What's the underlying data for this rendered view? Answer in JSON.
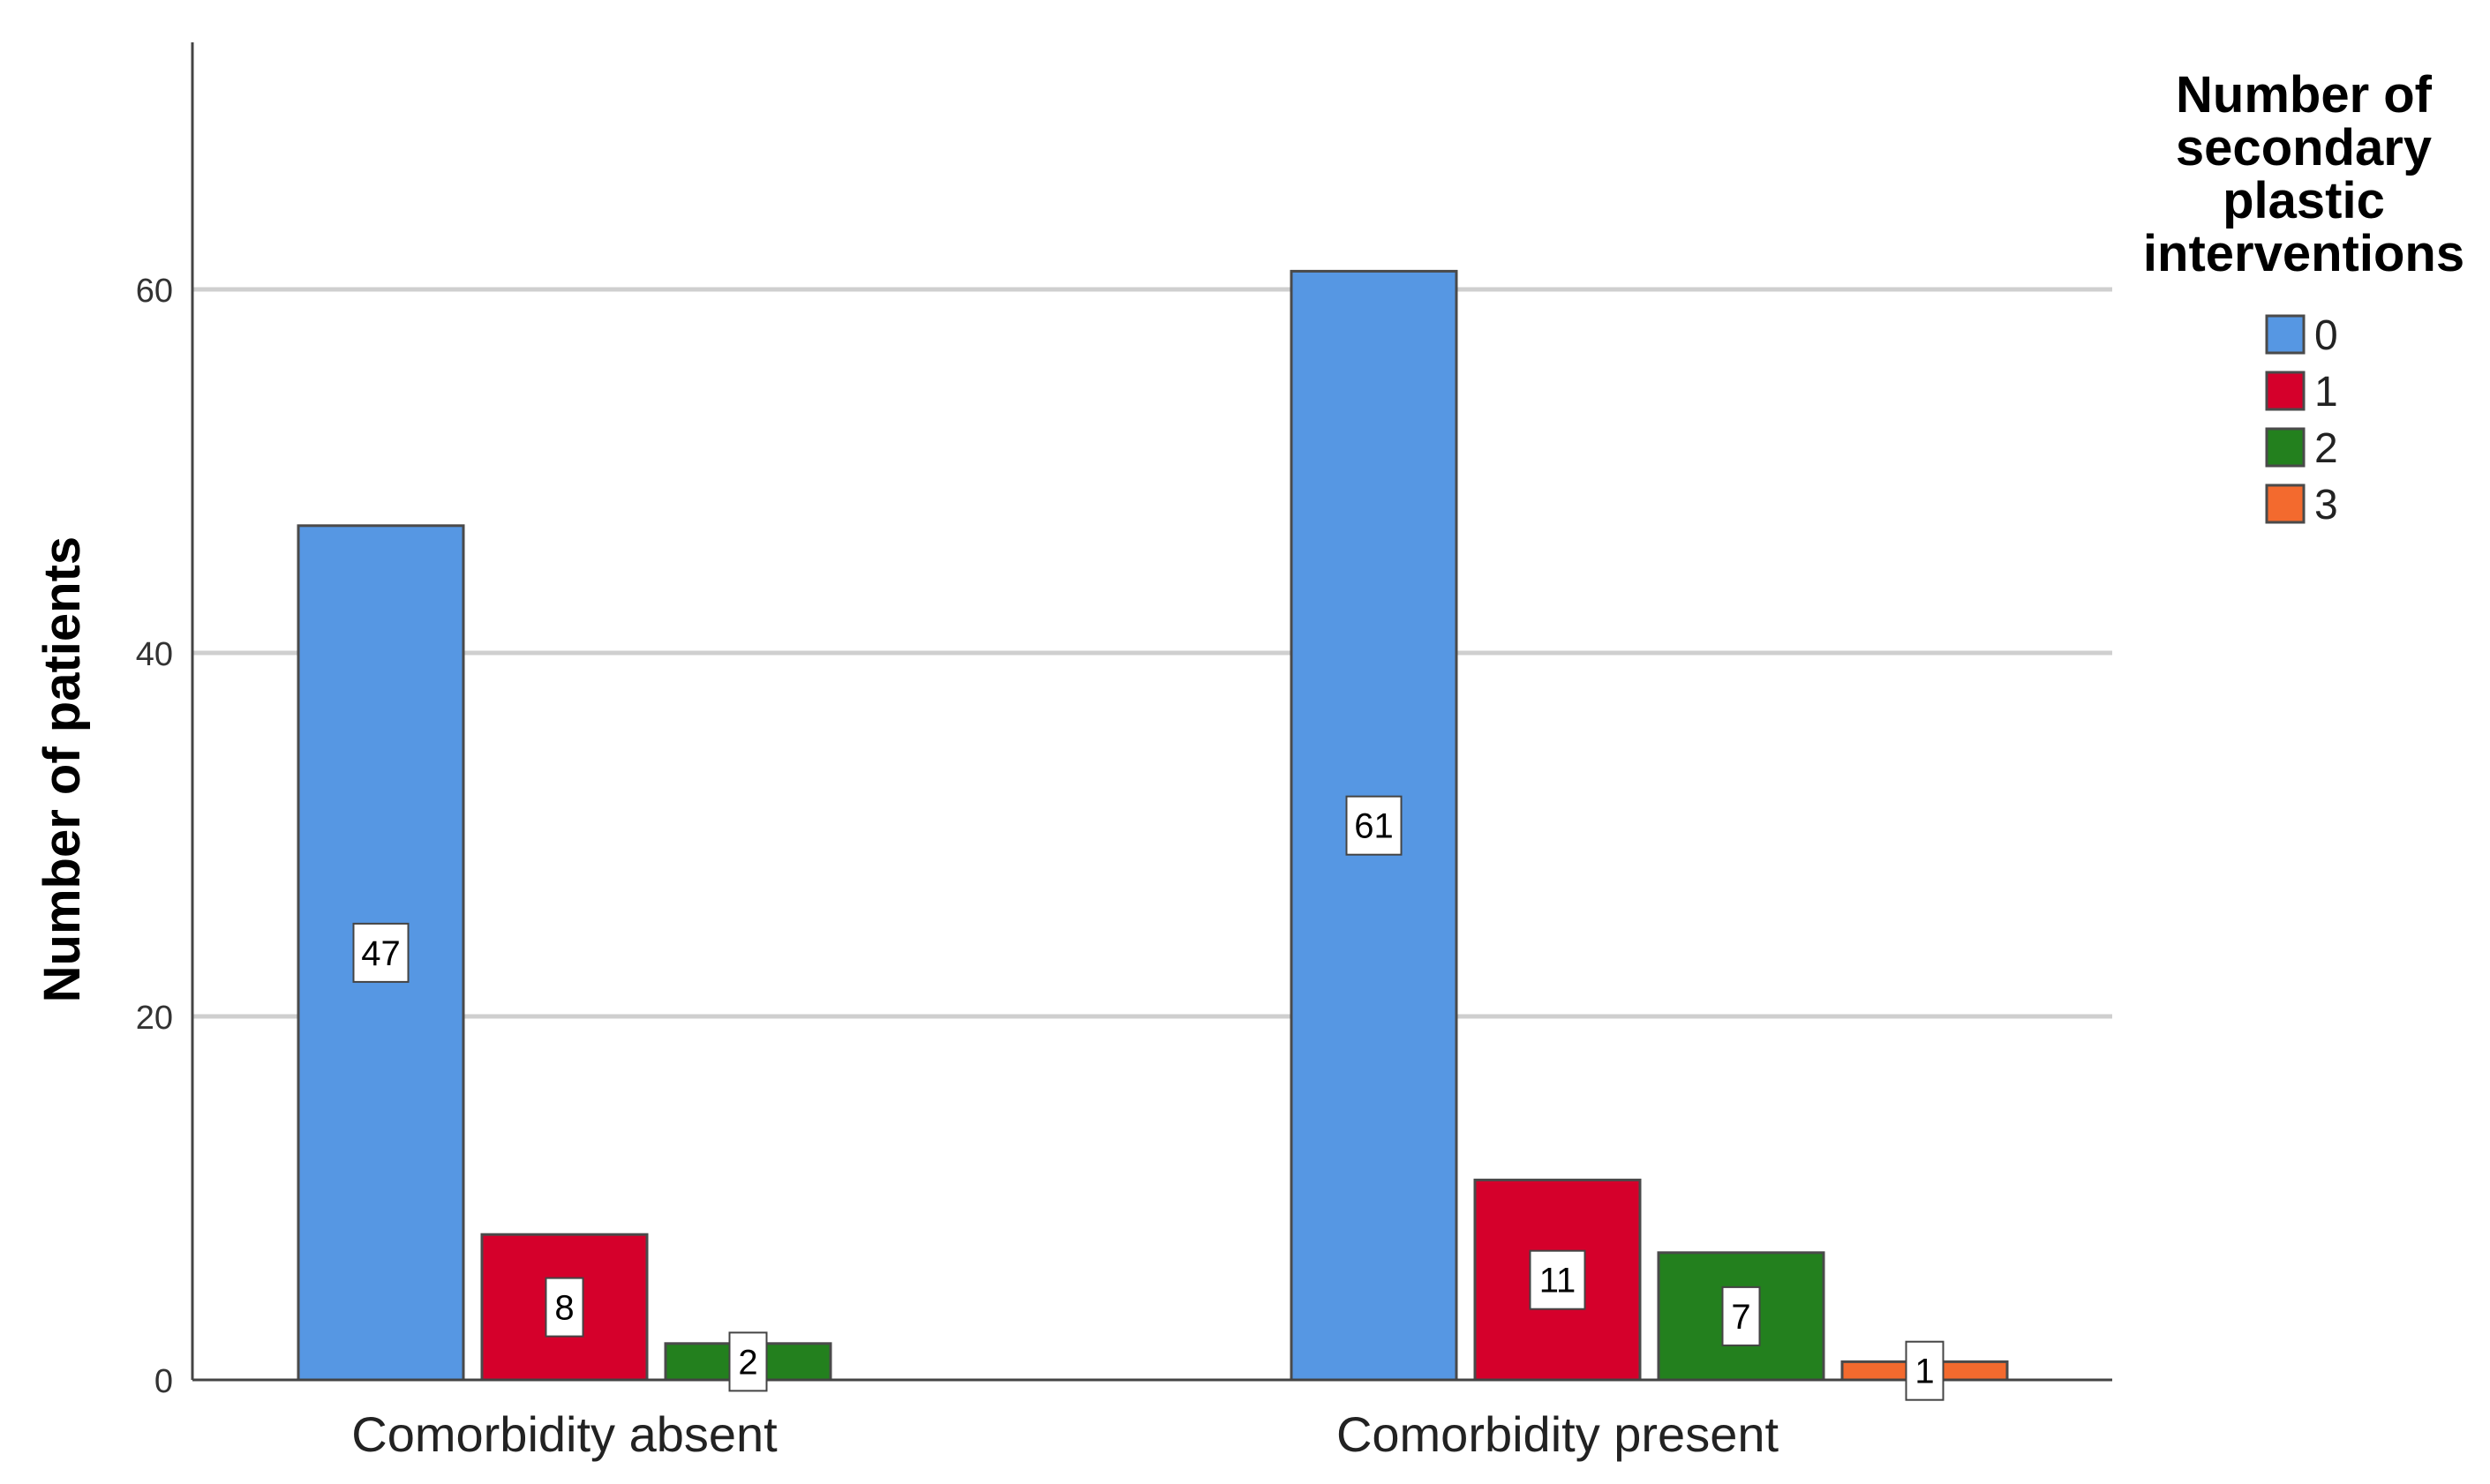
{
  "chart_data": {
    "type": "bar",
    "categories": [
      "Comorbidity absent",
      "Comorbidity present"
    ],
    "series": [
      {
        "name": "0",
        "values": [
          47,
          61
        ],
        "color": "#5697E3"
      },
      {
        "name": "1",
        "values": [
          8,
          11
        ],
        "color": "#D5002B"
      },
      {
        "name": "2",
        "values": [
          2,
          7
        ],
        "color": "#23801E"
      },
      {
        "name": "3",
        "values": [
          null,
          1
        ],
        "color": "#F36A2E"
      }
    ],
    "ylabel": "Number of patients",
    "xlabel": "",
    "ylim": [
      0,
      73
    ],
    "yticks": [
      0,
      20,
      40,
      60
    ],
    "grid": true,
    "legend": {
      "title_lines": [
        "Number of",
        "secondary",
        "plastic",
        "interventions"
      ],
      "position": "top-right"
    }
  }
}
